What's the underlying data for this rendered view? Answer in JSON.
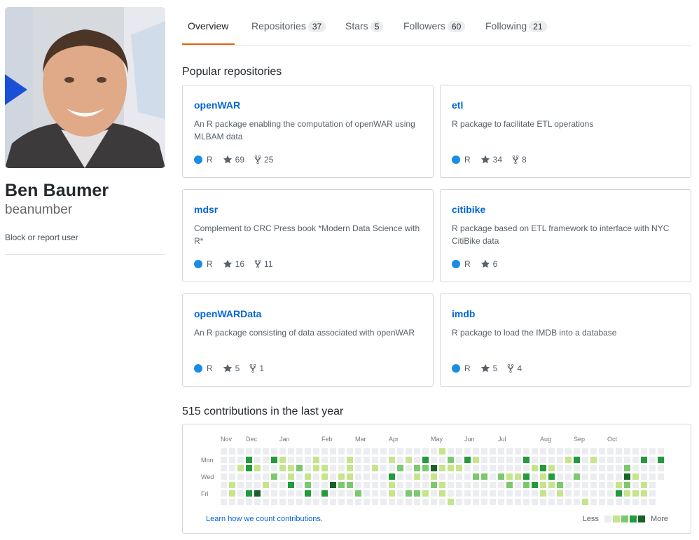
{
  "profile": {
    "fullname": "Ben Baumer",
    "username": "beanumber",
    "block_link": "Block or report user"
  },
  "tabs": [
    {
      "label": "Overview",
      "count": null,
      "active": true
    },
    {
      "label": "Repositories",
      "count": "37"
    },
    {
      "label": "Stars",
      "count": "5"
    },
    {
      "label": "Followers",
      "count": "60"
    },
    {
      "label": "Following",
      "count": "21"
    }
  ],
  "popular": {
    "title": "Popular repositories",
    "repos": [
      {
        "name": "openWAR",
        "desc": "An R package enabling the computation of openWAR using MLBAM data",
        "lang": "R",
        "stars": "69",
        "forks": "25"
      },
      {
        "name": "etl",
        "desc": "R package to facilitate ETL operations",
        "lang": "R",
        "stars": "34",
        "forks": "8"
      },
      {
        "name": "mdsr",
        "desc": "Complement to CRC Press book *Modern Data Science with R*",
        "lang": "R",
        "stars": "16",
        "forks": "11"
      },
      {
        "name": "citibike",
        "desc": "R package based on ETL framework to interface with NYC CitiBike data",
        "lang": "R",
        "stars": "6",
        "forks": null
      },
      {
        "name": "openWARData",
        "desc": "An R package consisting of data associated with openWAR",
        "lang": "R",
        "stars": "5",
        "forks": "1"
      },
      {
        "name": "imdb",
        "desc": "R package to load the IMDB into a database",
        "lang": "R",
        "stars": "5",
        "forks": "4"
      }
    ]
  },
  "contributions": {
    "title": "515 contributions in the last year",
    "months": [
      "Nov",
      "Dec",
      "Jan",
      "Feb",
      "Mar",
      "Apr",
      "May",
      "Jun",
      "Jul",
      "Aug",
      "Sep",
      "Oct"
    ],
    "month_week_index": [
      0,
      3,
      7,
      12,
      16,
      20,
      25,
      29,
      33,
      38,
      42,
      46
    ],
    "weekdays": [
      "Mon",
      "Wed",
      "Fri"
    ],
    "learn_link": "Learn how we count contributions.",
    "legend_less": "Less",
    "legend_more": "More",
    "colors": [
      "#ebedf0",
      "#c6e48b",
      "#7bc96f",
      "#239a3b",
      "#196127"
    ],
    "lang_color": "#198ce7"
  }
}
